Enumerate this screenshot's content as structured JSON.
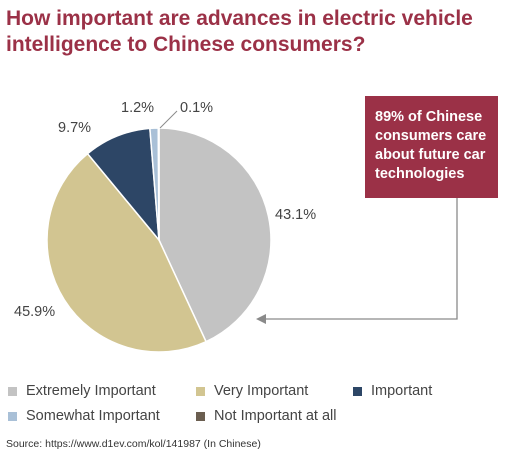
{
  "chart_data": {
    "type": "pie",
    "title": "How important are advances in electric vehicle\nintelligence to Chinese consumers?",
    "categories": [
      "Extremely Important",
      "Very Important",
      "Important",
      "Somewhat Important",
      "Not Important at all"
    ],
    "values": [
      43.1,
      45.9,
      9.7,
      1.2,
      0.1
    ],
    "data_labels": [
      "43.1%",
      "45.9%",
      "9.7%",
      "1.2%",
      "0.1%"
    ],
    "colors": [
      "#c3c3c3",
      "#d2c591",
      "#2d4666",
      "#a9c0d7",
      "#6b5e50"
    ],
    "legend": "bottom",
    "annotation": "89% of Chinese consumers care about future car technologies",
    "source": "Source: https://www.d1ev.com/kol/141987 (In Chinese)"
  }
}
